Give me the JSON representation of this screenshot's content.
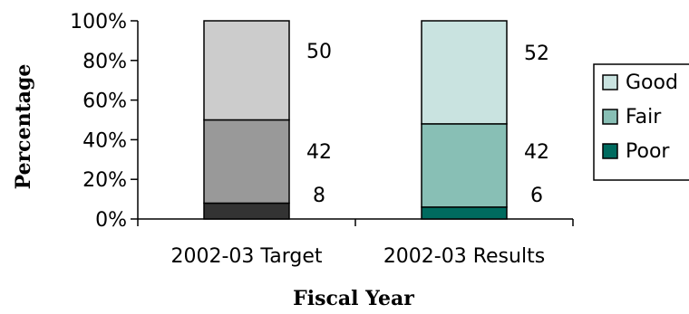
{
  "chart_data": {
    "type": "bar",
    "stacked": true,
    "title": "",
    "xlabel": "Fiscal Year",
    "ylabel": "Percentage",
    "ylim": [
      0,
      100
    ],
    "yticks": [
      "0%",
      "20%",
      "40%",
      "60%",
      "80%",
      "100%"
    ],
    "categories": [
      "2002-03 Target",
      "2002-03 Results"
    ],
    "series": [
      {
        "name": "Poor",
        "values": [
          8,
          6
        ]
      },
      {
        "name": "Fair",
        "values": [
          42,
          42
        ]
      },
      {
        "name": "Good",
        "values": [
          50,
          52
        ]
      }
    ],
    "colors": {
      "2002-03 Target": {
        "Poor": "#333333",
        "Fair": "#999999",
        "Good": "#cccccc"
      },
      "2002-03 Results": {
        "Poor": "#006b5f",
        "Fair": "#88bfb5",
        "Good": "#c9e3e0"
      }
    },
    "legend": {
      "placement": "right",
      "items": [
        {
          "label": "Good",
          "color": "#c9e3e0"
        },
        {
          "label": "Fair",
          "color": "#88bfb5"
        },
        {
          "label": "Poor",
          "color": "#006b5f"
        }
      ]
    },
    "grid": false
  }
}
